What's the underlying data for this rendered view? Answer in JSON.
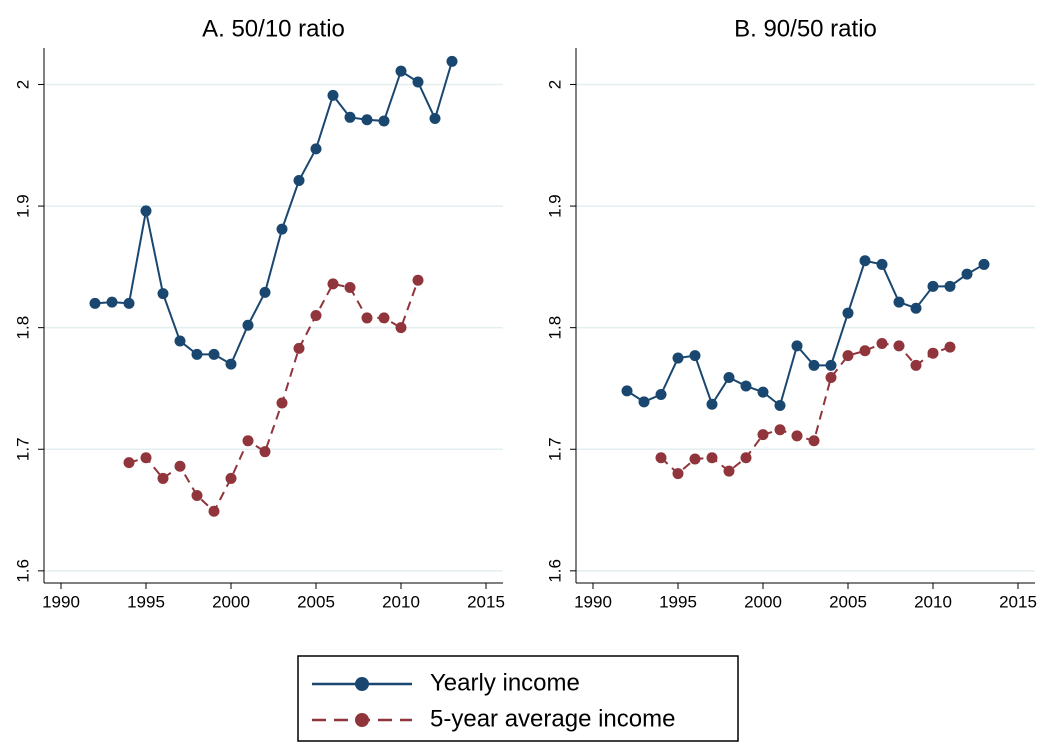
{
  "chart_data": [
    {
      "type": "line",
      "title": "A. 50/10 ratio",
      "x": [
        1992,
        1993,
        1994,
        1995,
        1996,
        1997,
        1998,
        1999,
        2000,
        2001,
        2002,
        2003,
        2004,
        2005,
        2006,
        2007,
        2008,
        2009,
        2010,
        2011,
        2012,
        2013
      ],
      "series": [
        {
          "name": "Yearly income",
          "color": "#1a476f",
          "line_style": "solid",
          "values": [
            1.82,
            1.821,
            1.82,
            1.896,
            1.828,
            1.789,
            1.778,
            1.778,
            1.77,
            1.802,
            1.829,
            1.881,
            1.921,
            1.947,
            1.991,
            1.973,
            1.971,
            1.97,
            2.011,
            2.002,
            1.972,
            2.019
          ]
        },
        {
          "name": "5-year average income",
          "color": "#90353b",
          "line_style": "dashed",
          "values": [
            null,
            null,
            1.689,
            1.693,
            1.676,
            1.686,
            1.662,
            1.649,
            1.676,
            1.707,
            1.698,
            1.738,
            1.783,
            1.81,
            1.836,
            1.833,
            1.808,
            1.808,
            1.8,
            1.839,
            null,
            null
          ]
        }
      ],
      "xlim": [
        1989,
        2016
      ],
      "xticks": [
        1990,
        1995,
        2000,
        2005,
        2010,
        2015
      ],
      "ylim": [
        1.59,
        2.03
      ],
      "yticks": [
        1.6,
        1.7,
        1.8,
        1.9,
        2
      ],
      "grid": true
    },
    {
      "type": "line",
      "title": "B. 90/50 ratio",
      "x": [
        1992,
        1993,
        1994,
        1995,
        1996,
        1997,
        1998,
        1999,
        2000,
        2001,
        2002,
        2003,
        2004,
        2005,
        2006,
        2007,
        2008,
        2009,
        2010,
        2011,
        2012,
        2013
      ],
      "series": [
        {
          "name": "Yearly income",
          "color": "#1a476f",
          "line_style": "solid",
          "values": [
            1.748,
            1.739,
            1.745,
            1.775,
            1.777,
            1.737,
            1.759,
            1.752,
            1.747,
            1.736,
            1.785,
            1.769,
            1.769,
            1.812,
            1.855,
            1.852,
            1.821,
            1.816,
            1.834,
            1.834,
            1.844,
            1.852
          ]
        },
        {
          "name": "5-year average income",
          "color": "#90353b",
          "line_style": "dashed",
          "values": [
            null,
            null,
            1.693,
            1.68,
            1.692,
            1.693,
            1.682,
            1.693,
            1.712,
            1.716,
            1.711,
            1.707,
            1.759,
            1.777,
            1.781,
            1.787,
            1.785,
            1.769,
            1.779,
            1.784,
            null,
            null
          ]
        }
      ],
      "xlim": [
        1989,
        2016
      ],
      "xticks": [
        1990,
        1995,
        2000,
        2005,
        2010,
        2015
      ],
      "ylim": [
        1.59,
        2.03
      ],
      "yticks": [
        1.6,
        1.7,
        1.8,
        1.9,
        2
      ],
      "grid": true
    }
  ]
}
